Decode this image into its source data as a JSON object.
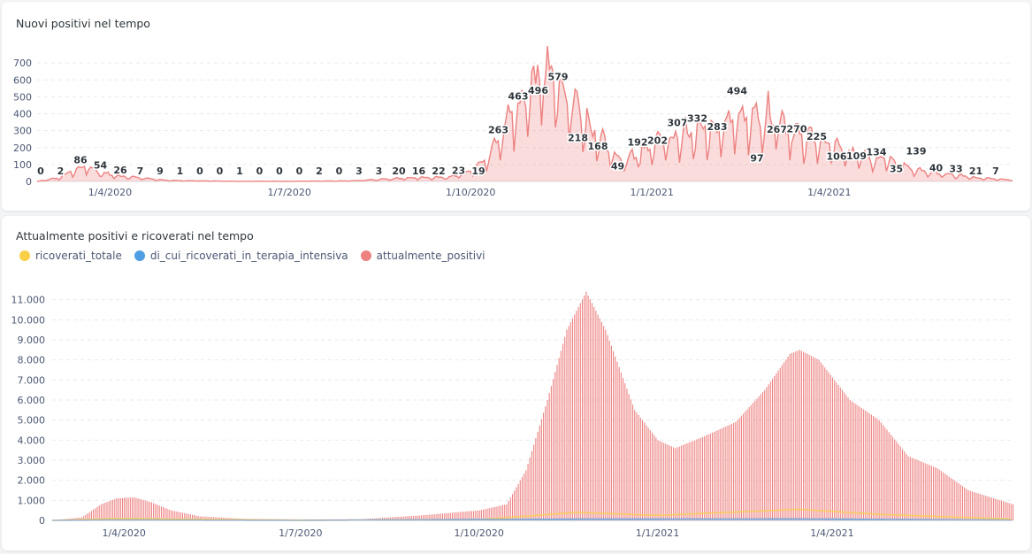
{
  "charts": {
    "new_positives": {
      "title": "Nuovi positivi nel tempo"
    },
    "current_positives": {
      "title": "Attualmente positivi e ricoverati nel tempo"
    }
  },
  "legend": [
    {
      "label": "ricoverati_totale",
      "color": "#f9cf48"
    },
    {
      "label": "di_cui_ricoverati_in_terapia_intensiva",
      "color": "#509ee3"
    },
    {
      "label": "attualmente_positivi",
      "color": "#ed8281"
    }
  ],
  "chart_data": [
    {
      "type": "area",
      "title": "Nuovi positivi nel tempo",
      "x_start": "24/2/2020",
      "x_end": "3/7/2021",
      "x_ticks": [
        {
          "label": "1/4/2020",
          "date": "1/4/2020"
        },
        {
          "label": "1/7/2020",
          "date": "1/7/2020"
        },
        {
          "label": "1/10/2020",
          "date": "1/10/2020"
        },
        {
          "label": "1/1/2021",
          "date": "1/1/2021"
        },
        {
          "label": "1/4/2021",
          "date": "1/4/2021"
        }
      ],
      "ylim": [
        0,
        800
      ],
      "y_ticks": [
        0,
        100,
        200,
        300,
        400,
        500,
        600,
        700
      ],
      "color": "#ed8281",
      "trend": [
        [
          "24/2/2020",
          0
        ],
        [
          "6/3/2020",
          20
        ],
        [
          "19/3/2020",
          90
        ],
        [
          "25/3/2020",
          55
        ],
        [
          "5/4/2020",
          30
        ],
        [
          "1/5/2020",
          5
        ],
        [
          "1/6/2020",
          1
        ],
        [
          "1/7/2020",
          1
        ],
        [
          "1/8/2020",
          3
        ],
        [
          "1/9/2020",
          20
        ],
        [
          "20/9/2020",
          24
        ],
        [
          "1/10/2020",
          55
        ],
        [
          "11/10/2020",
          150
        ],
        [
          "21/10/2020",
          350
        ],
        [
          "28/10/2020",
          460
        ],
        [
          "3/11/2020",
          560
        ],
        [
          "7/11/2020",
          640
        ],
        [
          "12/11/2020",
          590
        ],
        [
          "21/11/2020",
          470
        ],
        [
          "1/12/2020",
          300
        ],
        [
          "11/12/2020",
          160
        ],
        [
          "18/12/2020",
          120
        ],
        [
          "1/1/2021",
          200
        ],
        [
          "15/1/2021",
          260
        ],
        [
          "1/2/2021",
          300
        ],
        [
          "15/2/2021",
          350
        ],
        [
          "1/3/2021",
          380
        ],
        [
          "15/3/2021",
          260
        ],
        [
          "1/4/2021",
          200
        ],
        [
          "15/4/2021",
          140
        ],
        [
          "1/5/2021",
          120
        ],
        [
          "15/5/2021",
          60
        ],
        [
          "1/6/2021",
          40
        ],
        [
          "15/6/2021",
          20
        ],
        [
          "3/7/2021",
          8
        ]
      ],
      "data_labels": [
        {
          "date": "24/2/2020",
          "value": 0
        },
        {
          "date": "6/3/2020",
          "value": 2
        },
        {
          "date": "17/3/2020",
          "value": 86
        },
        {
          "date": "27/3/2020",
          "value": 54
        },
        {
          "date": "8/4/2020",
          "value": 26
        },
        {
          "date": "20/4/2020",
          "value": 7
        },
        {
          "date": "1/5/2020",
          "value": 9
        },
        {
          "date": "12/5/2020",
          "value": 1
        },
        {
          "date": "23/5/2020",
          "value": 0
        },
        {
          "date": "3/6/2020",
          "value": 0
        },
        {
          "date": "14/6/2020",
          "value": 1
        },
        {
          "date": "25/6/2020",
          "value": 0
        },
        {
          "date": "6/7/2020",
          "value": 0
        },
        {
          "date": "17/7/2020",
          "value": 0
        },
        {
          "date": "28/7/2020",
          "value": 2
        },
        {
          "date": "8/8/2020",
          "value": 0
        },
        {
          "date": "19/8/2020",
          "value": 3
        },
        {
          "date": "30/8/2020",
          "value": 3
        },
        {
          "date": "10/9/2020",
          "value": 20
        },
        {
          "date": "21/9/2020",
          "value": 16
        },
        {
          "date": "2/10/2020",
          "value": 22
        },
        {
          "date": "13/10/2020",
          "value": 23
        },
        {
          "date": "24/10/2020",
          "value": 19
        },
        {
          "date": "4/11/2020",
          "value": 263
        },
        {
          "date": "15/11/2020",
          "value": 463
        },
        {
          "date": "26/11/2020",
          "value": 496
        },
        {
          "date": "7/12/2020",
          "value": 579
        },
        {
          "date": "18/12/2020",
          "value": 218
        },
        {
          "date": "29/12/2020",
          "value": 168
        },
        {
          "date": "9/1/2021",
          "value": 49
        },
        {
          "date": "20/1/2021",
          "value": 192
        },
        {
          "date": "31/1/2021",
          "value": 202
        },
        {
          "date": "11/2/2021",
          "value": 307
        },
        {
          "date": "22/2/2021",
          "value": 332
        },
        {
          "date": "5/3/2021",
          "value": 283
        },
        {
          "date": "16/3/2021",
          "value": 494
        },
        {
          "date": "27/3/2021",
          "value": 97
        },
        {
          "date": "7/4/2021",
          "value": 267
        },
        {
          "date": "18/4/2021",
          "value": 270
        },
        {
          "date": "29/4/2021",
          "value": 225
        },
        {
          "date": "10/5/2021",
          "value": 106
        },
        {
          "date": "21/5/2021",
          "value": 109
        },
        {
          "date": "1/6/2021",
          "value": 134
        },
        {
          "date": "12/6/2021",
          "value": 35
        },
        {
          "date": "23/6/2021",
          "value": 139
        },
        {
          "date": "4/7/2021",
          "value": 40
        },
        {
          "date": "15/7/2021",
          "value": 33
        },
        {
          "date": "26/7/2021",
          "value": 21
        },
        {
          "date": "6/8/2021",
          "value": 7
        }
      ]
    },
    {
      "type": "bar",
      "title": "Attualmente positivi e ricoverati nel tempo",
      "x_start": "24/2/2020",
      "x_end": "3/7/2021",
      "x_ticks": [
        {
          "label": "1/4/2020",
          "date": "1/4/2020"
        },
        {
          "label": "1/7/2020",
          "date": "1/7/2020"
        },
        {
          "label": "1/10/2020",
          "date": "1/10/2020"
        },
        {
          "label": "1/1/2021",
          "date": "1/1/2021"
        },
        {
          "label": "1/4/2021",
          "date": "1/4/2021"
        }
      ],
      "ylim": [
        0,
        12000
      ],
      "y_ticks": [
        {
          "value": 0,
          "label": "0"
        },
        {
          "value": 1000,
          "label": "1.000"
        },
        {
          "value": 2000,
          "label": "2.000"
        },
        {
          "value": 3000,
          "label": "3.000"
        },
        {
          "value": 4000,
          "label": "4.000"
        },
        {
          "value": 5000,
          "label": "5.000"
        },
        {
          "value": 6000,
          "label": "6.000"
        },
        {
          "value": 7000,
          "label": "7.000"
        },
        {
          "value": 8000,
          "label": "8.000"
        },
        {
          "value": 9000,
          "label": "9.000"
        },
        {
          "value": 10000,
          "label": "10.000"
        },
        {
          "value": 11000,
          "label": "11.000"
        }
      ],
      "series": [
        {
          "name": "attualmente_positivi",
          "color": "#ed8281",
          "points": [
            [
              "24/2/2020",
              0
            ],
            [
              "10/3/2020",
              150
            ],
            [
              "20/3/2020",
              800
            ],
            [
              "28/3/2020",
              1100
            ],
            [
              "6/4/2020",
              1150
            ],
            [
              "15/4/2020",
              900
            ],
            [
              "25/4/2020",
              500
            ],
            [
              "10/5/2020",
              200
            ],
            [
              "1/6/2020",
              80
            ],
            [
              "1/7/2020",
              50
            ],
            [
              "1/8/2020",
              60
            ],
            [
              "1/9/2020",
              250
            ],
            [
              "1/10/2020",
              500
            ],
            [
              "15/10/2020",
              800
            ],
            [
              "25/10/2020",
              2500
            ],
            [
              "5/11/2020",
              6000
            ],
            [
              "15/11/2020",
              9500
            ],
            [
              "25/11/2020",
              11400
            ],
            [
              "5/12/2020",
              9500
            ],
            [
              "20/12/2020",
              5500
            ],
            [
              "1/1/2021",
              4000
            ],
            [
              "10/1/2021",
              3600
            ],
            [
              "25/1/2021",
              4200
            ],
            [
              "10/2/2021",
              4900
            ],
            [
              "25/2/2021",
              6500
            ],
            [
              "10/3/2021",
              8300
            ],
            [
              "15/3/2021",
              8500
            ],
            [
              "25/3/2021",
              8000
            ],
            [
              "10/4/2021",
              6000
            ],
            [
              "25/4/2021",
              5000
            ],
            [
              "10/5/2021",
              3200
            ],
            [
              "25/5/2021",
              2600
            ],
            [
              "10/6/2021",
              1500
            ],
            [
              "3/7/2021",
              800
            ]
          ]
        },
        {
          "name": "ricoverati_totale",
          "color": "#f9cf48",
          "points": [
            [
              "24/2/2020",
              0
            ],
            [
              "28/3/2020",
              90
            ],
            [
              "1/7/2020",
              5
            ],
            [
              "1/10/2020",
              30
            ],
            [
              "20/11/2020",
              400
            ],
            [
              "1/1/2021",
              250
            ],
            [
              "15/3/2021",
              550
            ],
            [
              "25/4/2021",
              300
            ],
            [
              "3/7/2021",
              60
            ]
          ]
        },
        {
          "name": "di_cui_ricoverati_in_terapia_intensiva",
          "color": "#509ee3",
          "points": [
            [
              "24/2/2020",
              0
            ],
            [
              "28/3/2020",
              20
            ],
            [
              "1/7/2020",
              1
            ],
            [
              "20/11/2020",
              60
            ],
            [
              "15/3/2021",
              70
            ],
            [
              "3/7/2021",
              10
            ]
          ]
        }
      ]
    }
  ]
}
